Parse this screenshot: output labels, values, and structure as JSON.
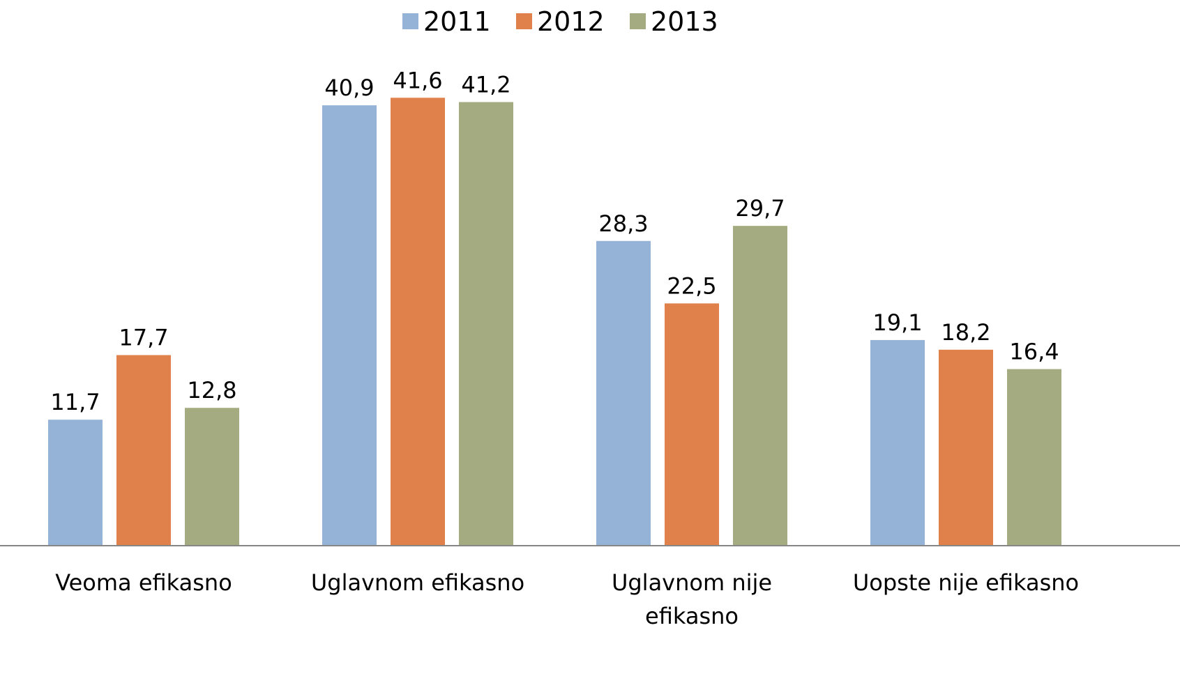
{
  "chart_data": {
    "type": "bar",
    "categories": [
      "Veoma efikasno",
      "Uglavnom efikasno",
      "Uglavnom nije efikasno",
      "Uopste nije efikasno"
    ],
    "series": [
      {
        "name": "2011",
        "color": "#95b3d7",
        "values": [
          11.7,
          40.9,
          28.3,
          19.1
        ],
        "value_labels": [
          "11,7",
          "40,9",
          "28,3",
          "19,1"
        ]
      },
      {
        "name": "2012",
        "color": "#e0804a",
        "values": [
          17.7,
          41.6,
          22.5,
          18.2
        ],
        "value_labels": [
          "17,7",
          "41,6",
          "22,5",
          "18,2"
        ]
      },
      {
        "name": "2013",
        "color": "#a5ab80",
        "values": [
          12.8,
          41.2,
          29.7,
          16.4
        ],
        "value_labels": [
          "12,8",
          "41,2",
          "29,7",
          "16,4"
        ]
      }
    ],
    "ylim": [
      0,
      45
    ],
    "legend": "top"
  }
}
